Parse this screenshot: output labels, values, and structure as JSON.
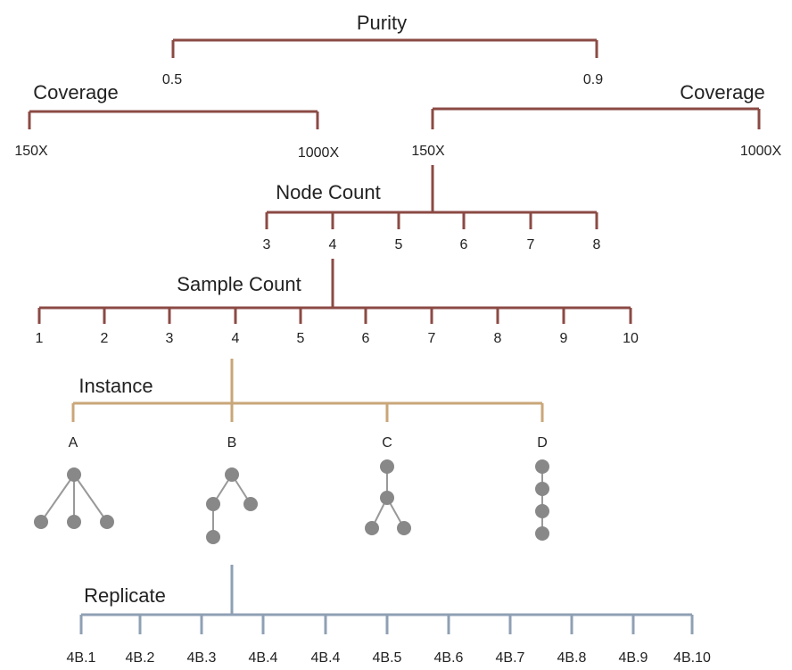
{
  "purity": {
    "label": "Purity",
    "values": [
      "0.5",
      "0.9"
    ]
  },
  "coverage": [
    {
      "label": "Coverage",
      "values": [
        "150X",
        "1000X"
      ]
    },
    {
      "label": "Coverage",
      "values": [
        "150X",
        "1000X"
      ]
    }
  ],
  "node_count": {
    "label": "Node Count",
    "values": [
      "3",
      "4",
      "5",
      "6",
      "7",
      "8"
    ]
  },
  "sample_count": {
    "label": "Sample Count",
    "values": [
      "1",
      "2",
      "3",
      "4",
      "5",
      "6",
      "7",
      "8",
      "9",
      "10"
    ]
  },
  "instance": {
    "label": "Instance",
    "values": [
      "A",
      "B",
      "C",
      "D"
    ]
  },
  "replicate": {
    "label": "Replicate",
    "values": [
      "4B.1",
      "4B.2",
      "4B.3",
      "4B.4",
      "4B.4",
      "4B.5",
      "4B.6",
      "4B.7",
      "4B.8",
      "4B.9",
      "4B.10"
    ]
  }
}
